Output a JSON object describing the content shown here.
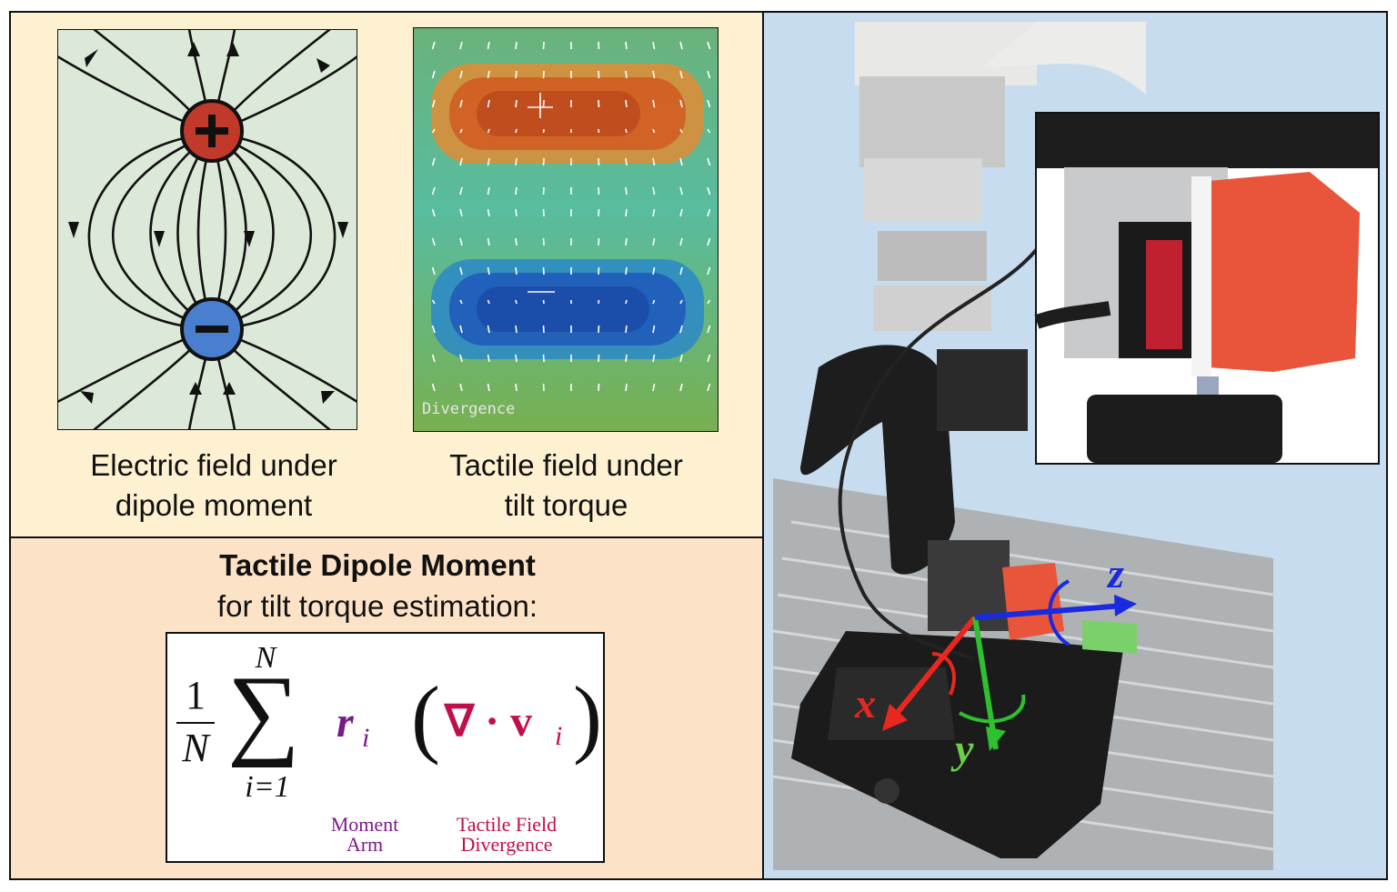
{
  "left_panel": {
    "electric_caption_line1": "Electric field under",
    "electric_caption_line2": "dipole moment",
    "tactile_caption_line1": "Tactile field under",
    "tactile_caption_line2": "tilt torque",
    "heatmap_label": "Divergence",
    "positive_symbol": "+",
    "negative_symbol": "−"
  },
  "formula_panel": {
    "title": "Tactile Dipole Moment",
    "subtitle": "for tilt torque estimation:",
    "frac_num": "1",
    "frac_den": "N",
    "sum_top": "N",
    "sum_bottom": "i=1",
    "moment_arm_symbol": "r",
    "subscript": "i",
    "divergence_symbol": "∇ · v",
    "label_moment_line1": "Moment",
    "label_moment_line2": "Arm",
    "label_div_line1": "Tactile Field",
    "label_div_line2": "Divergence",
    "colors": {
      "moment": "#7a1a8a",
      "divergence": "#c0104a"
    }
  },
  "photo_panel": {
    "axis_x": "x",
    "axis_y": "y",
    "axis_z": "z",
    "colors": {
      "x": "#e8281e",
      "y": "#2ec02e",
      "z": "#1a2ae0"
    }
  }
}
